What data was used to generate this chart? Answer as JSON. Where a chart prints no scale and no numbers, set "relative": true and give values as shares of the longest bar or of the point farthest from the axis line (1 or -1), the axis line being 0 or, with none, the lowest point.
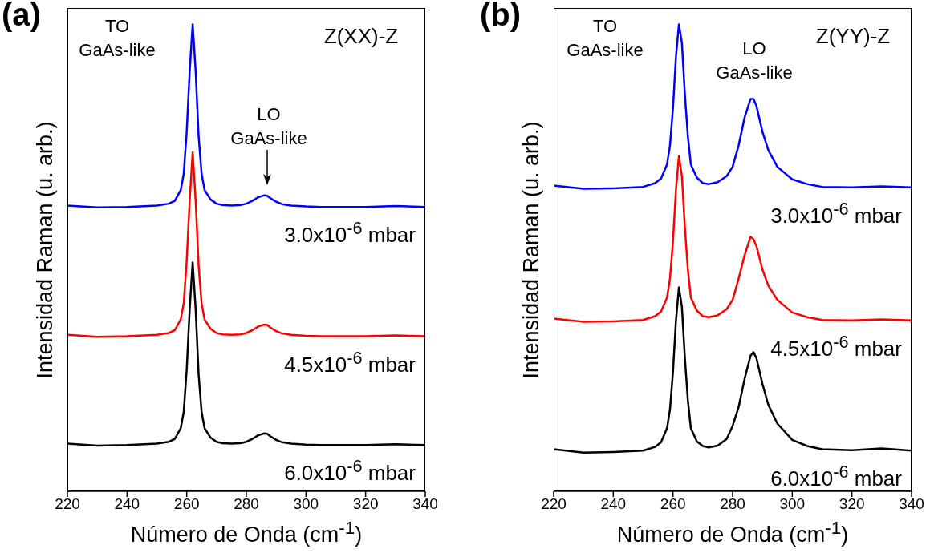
{
  "chart_data": [
    {
      "type": "line",
      "title": "(a)",
      "xlabel": "Número de Onda (cm$^{-1}$)",
      "ylabel": "Intensidad Raman (u. arb.)",
      "relative": true,
      "tick_labels": "x",
      "xlim": [
        220,
        340
      ],
      "xticks": [
        220,
        240,
        260,
        280,
        300,
        320,
        340
      ],
      "annotations": [
        "TO\nGaAs-like",
        "LO\nGaAs-like",
        "Z(XX)-Z"
      ],
      "x": [
        220,
        230,
        240,
        250,
        254,
        256,
        258,
        259,
        260,
        261,
        262,
        263,
        264,
        265,
        266,
        268,
        270,
        272,
        275,
        278,
        280,
        282,
        284,
        286,
        287,
        288,
        290,
        292,
        295,
        300,
        305,
        310,
        320,
        330,
        340
      ],
      "series": [
        {
          "name": "3.0x10$^{-6}$ mbar",
          "color": "#0000ff",
          "values": [
            0.612,
            0.608,
            0.609,
            0.612,
            0.616,
            0.622,
            0.645,
            0.68,
            0.77,
            0.9,
            1.0,
            0.9,
            0.76,
            0.68,
            0.645,
            0.625,
            0.616,
            0.613,
            0.612,
            0.613,
            0.616,
            0.622,
            0.63,
            0.634,
            0.633,
            0.628,
            0.62,
            0.615,
            0.612,
            0.61,
            0.609,
            0.609,
            0.609,
            0.611,
            0.609
          ]
        },
        {
          "name": "4.5x10$^{-6}$ mbar",
          "color": "#ff0000",
          "values": [
            0.335,
            0.331,
            0.332,
            0.335,
            0.339,
            0.345,
            0.368,
            0.403,
            0.493,
            0.623,
            0.726,
            0.623,
            0.483,
            0.403,
            0.368,
            0.348,
            0.339,
            0.336,
            0.335,
            0.336,
            0.339,
            0.345,
            0.353,
            0.357,
            0.356,
            0.351,
            0.343,
            0.338,
            0.335,
            0.333,
            0.332,
            0.332,
            0.332,
            0.334,
            0.332
          ]
        },
        {
          "name": "6.0x10$^{-6}$ mbar",
          "color": "#000000",
          "values": [
            0.102,
            0.098,
            0.099,
            0.102,
            0.106,
            0.112,
            0.135,
            0.17,
            0.26,
            0.39,
            0.49,
            0.39,
            0.25,
            0.17,
            0.135,
            0.115,
            0.106,
            0.103,
            0.102,
            0.103,
            0.106,
            0.112,
            0.12,
            0.124,
            0.123,
            0.118,
            0.11,
            0.105,
            0.102,
            0.1,
            0.099,
            0.099,
            0.099,
            0.101,
            0.099
          ]
        }
      ]
    },
    {
      "type": "line",
      "title": "(b)",
      "xlabel": "Número de Onda (cm$^{-1}$)",
      "ylabel": "Intensidad Raman (u. arb.)",
      "relative": true,
      "tick_labels": "x",
      "xlim": [
        220,
        340
      ],
      "xticks": [
        220,
        240,
        260,
        280,
        300,
        320,
        340
      ],
      "annotations": [
        "TO\nGaAs-like",
        "LO\nGaAs-like",
        "Z(YY)-Z"
      ],
      "x": [
        220,
        230,
        240,
        250,
        254,
        256,
        258,
        259,
        260,
        261,
        262,
        263,
        264,
        265,
        266,
        268,
        270,
        272,
        275,
        278,
        280,
        282,
        284,
        286,
        287,
        288,
        290,
        292,
        295,
        300,
        305,
        310,
        320,
        330,
        340
      ],
      "series": [
        {
          "name": "3.0x10$^{-6}$ mbar",
          "color": "#0000ff",
          "values": [
            0.655,
            0.648,
            0.649,
            0.652,
            0.66,
            0.67,
            0.7,
            0.74,
            0.82,
            0.93,
            1.0,
            0.96,
            0.85,
            0.76,
            0.7,
            0.672,
            0.66,
            0.658,
            0.662,
            0.675,
            0.695,
            0.74,
            0.8,
            0.84,
            0.84,
            0.825,
            0.77,
            0.73,
            0.695,
            0.668,
            0.658,
            0.652,
            0.651,
            0.653,
            0.651
          ]
        },
        {
          "name": "4.5x10$^{-6}$ mbar",
          "color": "#ff0000",
          "values": [
            0.37,
            0.363,
            0.364,
            0.367,
            0.375,
            0.385,
            0.415,
            0.455,
            0.535,
            0.645,
            0.718,
            0.675,
            0.565,
            0.475,
            0.415,
            0.387,
            0.375,
            0.373,
            0.377,
            0.39,
            0.41,
            0.455,
            0.505,
            0.545,
            0.54,
            0.525,
            0.475,
            0.44,
            0.41,
            0.383,
            0.373,
            0.367,
            0.366,
            0.368,
            0.366
          ]
        },
        {
          "name": "6.0x10$^{-6}$ mbar",
          "color": "#000000",
          "values": [
            0.09,
            0.083,
            0.084,
            0.087,
            0.095,
            0.105,
            0.135,
            0.175,
            0.255,
            0.365,
            0.437,
            0.395,
            0.285,
            0.195,
            0.135,
            0.107,
            0.097,
            0.094,
            0.098,
            0.112,
            0.14,
            0.18,
            0.24,
            0.29,
            0.298,
            0.285,
            0.23,
            0.185,
            0.145,
            0.11,
            0.097,
            0.09,
            0.088,
            0.092,
            0.087
          ]
        }
      ]
    }
  ]
}
